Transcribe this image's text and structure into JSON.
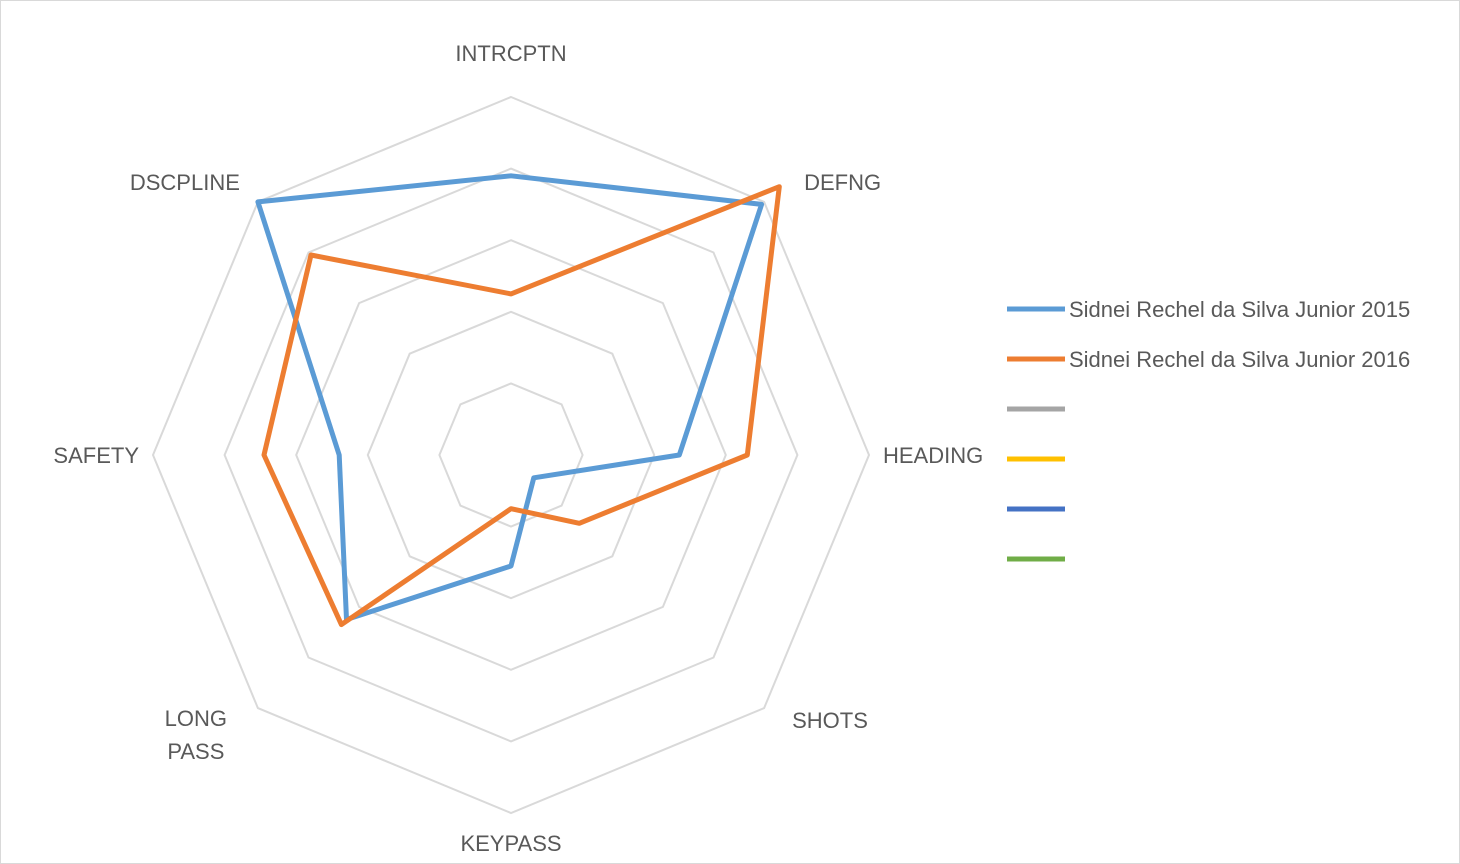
{
  "chart_data": {
    "type": "radar",
    "title": "",
    "axes": [
      "INTRCPTN",
      "DEFNG",
      "HEADING",
      "SHOTS",
      "KEYPASS",
      "LONG PASS",
      "SAFETY",
      "DSCPLINE"
    ],
    "rmax": 5,
    "rings": 5,
    "gridlines": true,
    "legend_position": "right",
    "series": [
      {
        "name": "Sidnei Rechel da Silva Junior 2015",
        "color": "#5b9bd5",
        "values": [
          3.9,
          4.95,
          2.35,
          0.45,
          1.55,
          3.25,
          2.4,
          5.0
        ]
      },
      {
        "name": "Sidnei Rechel da Silva Junior 2016",
        "color": "#ed7d31",
        "values": [
          2.25,
          5.3,
          3.3,
          1.35,
          0.75,
          3.35,
          3.45,
          3.95
        ]
      }
    ],
    "legend": [
      {
        "name": "Sidnei Rechel da Silva Junior 2015",
        "color": "#5b9bd5"
      },
      {
        "name": "Sidnei Rechel da Silva Junior 2016",
        "color": "#ed7d31"
      },
      {
        "name": "",
        "color": "#a5a5a5"
      },
      {
        "name": "",
        "color": "#ffc000"
      },
      {
        "name": "",
        "color": "#4472c4"
      },
      {
        "name": "",
        "color": "#70ad47"
      }
    ],
    "colors": {
      "grid": "#d9d9d9",
      "text": "#595959"
    }
  }
}
